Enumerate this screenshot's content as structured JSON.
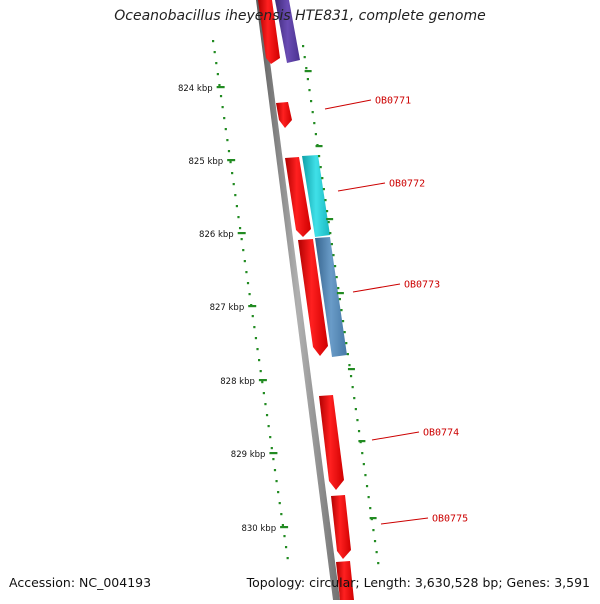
{
  "title": "Oceanobacillus iheyensis HTE831, complete genome",
  "footer": {
    "accession": "Accession: NC_004193",
    "summary": "Topology: circular; Length: 3,630,528 bp; Genes: 3,591"
  },
  "colors": {
    "backbone": "#888888",
    "ticks": "#228b22",
    "label": "#cc0000",
    "forward_gene": "#ff0000",
    "purple_gene": "#5b3ea0",
    "cyan_gene": "#22c8d0",
    "steelblue_gene": "#4a82b4"
  },
  "ticks": [
    {
      "label": "824 kbp"
    },
    {
      "label": "825 kbp"
    },
    {
      "label": "826 kbp"
    },
    {
      "label": "827 kbp"
    },
    {
      "label": "828 kbp"
    },
    {
      "label": "829 kbp"
    },
    {
      "label": "830 kbp"
    }
  ],
  "gene_labels": [
    {
      "label": "OB0771"
    },
    {
      "label": "OB0772"
    },
    {
      "label": "OB0773"
    },
    {
      "label": "OB0774"
    },
    {
      "label": "OB0775"
    }
  ]
}
